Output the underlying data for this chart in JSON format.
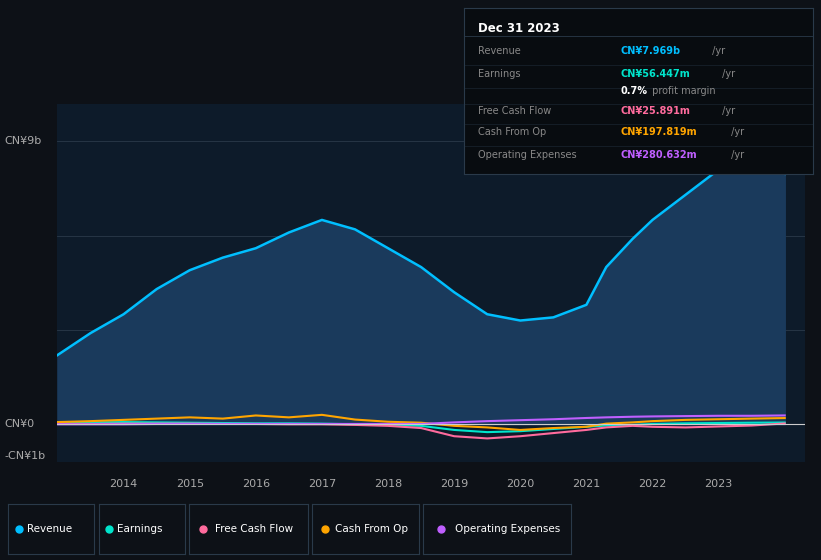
{
  "bg_color": "#0d1117",
  "plot_bg_color": "#0d1b2a",
  "years": [
    2013.0,
    2013.5,
    2014.0,
    2014.5,
    2015.0,
    2015.5,
    2016.0,
    2016.5,
    2017.0,
    2017.5,
    2018.0,
    2018.5,
    2019.0,
    2019.5,
    2020.0,
    2020.5,
    2021.0,
    2021.3,
    2021.7,
    2022.0,
    2022.5,
    2023.0,
    2023.5,
    2024.0
  ],
  "revenue": [
    2.2,
    2.9,
    3.5,
    4.3,
    4.9,
    5.3,
    5.6,
    6.1,
    6.5,
    6.2,
    5.6,
    5.0,
    4.2,
    3.5,
    3.3,
    3.4,
    3.8,
    5.0,
    5.9,
    6.5,
    7.3,
    8.1,
    8.5,
    7.969
  ],
  "earnings": [
    0.05,
    0.06,
    0.07,
    0.06,
    0.05,
    0.04,
    0.03,
    0.03,
    0.02,
    0.0,
    -0.02,
    -0.05,
    -0.18,
    -0.25,
    -0.22,
    -0.15,
    -0.08,
    -0.04,
    -0.02,
    0.01,
    0.03,
    0.04,
    0.05,
    0.056
  ],
  "free_cash_flow": [
    0.01,
    0.01,
    0.02,
    0.02,
    0.02,
    0.01,
    0.01,
    0.0,
    0.0,
    -0.02,
    -0.05,
    -0.12,
    -0.38,
    -0.45,
    -0.38,
    -0.28,
    -0.18,
    -0.1,
    -0.05,
    -0.08,
    -0.1,
    -0.07,
    -0.04,
    0.026
  ],
  "cash_from_op": [
    0.07,
    0.1,
    0.14,
    0.18,
    0.22,
    0.18,
    0.28,
    0.22,
    0.3,
    0.15,
    0.08,
    0.05,
    -0.05,
    -0.1,
    -0.18,
    -0.12,
    -0.08,
    0.02,
    0.06,
    0.1,
    0.14,
    0.16,
    0.18,
    0.198
  ],
  "operating_expenses": [
    0.0,
    0.0,
    0.0,
    0.01,
    0.01,
    0.01,
    0.01,
    0.01,
    0.01,
    0.01,
    0.01,
    0.01,
    0.06,
    0.1,
    0.13,
    0.16,
    0.2,
    0.22,
    0.24,
    0.25,
    0.26,
    0.27,
    0.27,
    0.281
  ],
  "revenue_color": "#00bfff",
  "revenue_fill_color": "#1a3a5c",
  "earnings_color": "#00e5cc",
  "free_cash_flow_color": "#ff6b9d",
  "cash_from_op_color": "#ffa500",
  "operating_expenses_color": "#bf5fff",
  "ylim": [
    -1.2,
    10.2
  ],
  "xlim_start": 2013.0,
  "xlim_end": 2024.3,
  "grid_color": "#2a3a4a",
  "zero_line_color": "#cccccc",
  "info_box": {
    "date": "Dec 31 2023",
    "revenue_label": "Revenue",
    "revenue_value": "CN¥7.969b",
    "earnings_label": "Earnings",
    "earnings_value": "CN¥56.447m",
    "profit_margin": "0.7% profit margin",
    "fcf_label": "Free Cash Flow",
    "fcf_value": "CN¥25.891m",
    "cashop_label": "Cash From Op",
    "cashop_value": "CN¥197.819m",
    "opex_label": "Operating Expenses",
    "opex_value": "CN¥280.632m"
  },
  "legend_items": [
    "Revenue",
    "Earnings",
    "Free Cash Flow",
    "Cash From Op",
    "Operating Expenses"
  ],
  "legend_colors": [
    "#00bfff",
    "#00e5cc",
    "#ff6b9d",
    "#ffa500",
    "#bf5fff"
  ],
  "xtick_years": [
    2014,
    2015,
    2016,
    2017,
    2018,
    2019,
    2020,
    2021,
    2022,
    2023
  ]
}
